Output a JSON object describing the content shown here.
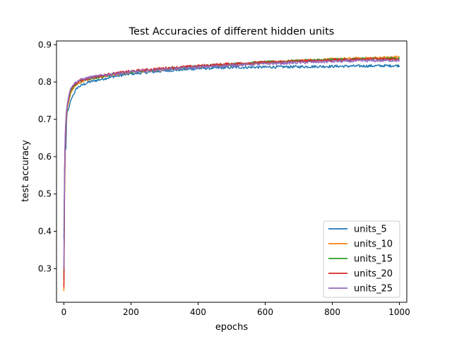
{
  "chart_data": {
    "type": "line",
    "title": "Test Accuracies of different hidden units",
    "xlabel": "epochs",
    "ylabel": "test accuracy",
    "xlim": [
      -22,
      1022
    ],
    "ylim": [
      0.21,
      0.91
    ],
    "xticks": [
      0,
      200,
      400,
      600,
      800,
      1000
    ],
    "yticks": [
      0.3,
      0.4,
      0.5,
      0.6,
      0.7,
      0.8,
      0.9
    ],
    "xtick_labels": [
      "0",
      "200",
      "400",
      "600",
      "800",
      "1000"
    ],
    "ytick_labels": [
      "0.3",
      "0.4",
      "0.5",
      "0.6",
      "0.7",
      "0.8",
      "0.9"
    ],
    "grid": false,
    "legend_position": "lower right",
    "series": [
      {
        "name": "units_5",
        "color": "#1f77b4",
        "x": [
          0,
          2,
          4,
          6,
          8,
          10,
          15,
          20,
          30,
          40,
          50,
          75,
          100,
          150,
          200,
          300,
          400,
          500,
          600,
          700,
          800,
          900,
          1000
        ],
        "y": [
          0.38,
          0.55,
          0.65,
          0.62,
          0.7,
          0.72,
          0.73,
          0.75,
          0.77,
          0.785,
          0.79,
          0.8,
          0.805,
          0.815,
          0.822,
          0.83,
          0.836,
          0.839,
          0.84,
          0.841,
          0.842,
          0.843,
          0.844
        ]
      },
      {
        "name": "units_10",
        "color": "#ff7f0e",
        "x": [
          0,
          2,
          4,
          6,
          8,
          10,
          15,
          20,
          30,
          40,
          50,
          75,
          100,
          150,
          200,
          300,
          400,
          500,
          600,
          700,
          800,
          900,
          1000
        ],
        "y": [
          0.24,
          0.5,
          0.62,
          0.68,
          0.71,
          0.73,
          0.75,
          0.77,
          0.785,
          0.795,
          0.8,
          0.808,
          0.812,
          0.82,
          0.826,
          0.834,
          0.841,
          0.847,
          0.852,
          0.857,
          0.861,
          0.864,
          0.867
        ]
      },
      {
        "name": "units_15",
        "color": "#2ca02c",
        "x": [
          0,
          2,
          4,
          6,
          8,
          10,
          15,
          20,
          30,
          40,
          50,
          75,
          100,
          150,
          200,
          300,
          400,
          500,
          600,
          700,
          800,
          900,
          1000
        ],
        "y": [
          0.27,
          0.53,
          0.64,
          0.69,
          0.72,
          0.735,
          0.755,
          0.775,
          0.79,
          0.798,
          0.802,
          0.809,
          0.813,
          0.821,
          0.827,
          0.835,
          0.842,
          0.848,
          0.853,
          0.857,
          0.86,
          0.862,
          0.864
        ]
      },
      {
        "name": "units_20",
        "color": "#d62728",
        "x": [
          0,
          2,
          4,
          6,
          8,
          10,
          15,
          20,
          30,
          40,
          50,
          75,
          100,
          150,
          200,
          300,
          400,
          500,
          600,
          700,
          800,
          900,
          1000
        ],
        "y": [
          0.25,
          0.52,
          0.63,
          0.69,
          0.72,
          0.735,
          0.76,
          0.78,
          0.792,
          0.8,
          0.804,
          0.811,
          0.815,
          0.823,
          0.829,
          0.837,
          0.843,
          0.849,
          0.853,
          0.856,
          0.859,
          0.861,
          0.862
        ]
      },
      {
        "name": "units_25",
        "color": "#9467bd",
        "x": [
          0,
          2,
          4,
          6,
          8,
          10,
          15,
          20,
          30,
          40,
          50,
          75,
          100,
          150,
          200,
          300,
          400,
          500,
          600,
          700,
          800,
          900,
          1000
        ],
        "y": [
          0.3,
          0.56,
          0.66,
          0.7,
          0.725,
          0.74,
          0.765,
          0.782,
          0.795,
          0.802,
          0.806,
          0.812,
          0.816,
          0.822,
          0.827,
          0.834,
          0.84,
          0.845,
          0.849,
          0.852,
          0.855,
          0.857,
          0.858
        ]
      }
    ]
  }
}
